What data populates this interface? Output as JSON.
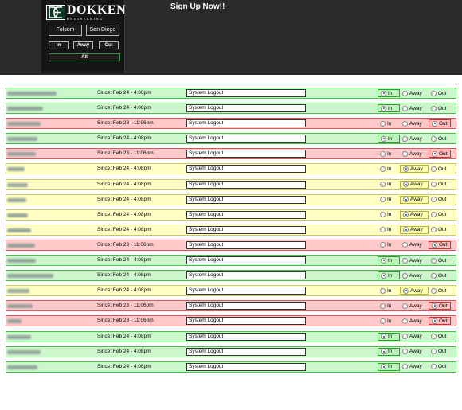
{
  "header": {
    "logo_name": "DOKKEN",
    "logo_sub": "ENGINEERING",
    "signup": "Sign Up Now!!",
    "locations": [
      "Folsom",
      "San Diego"
    ],
    "status_buttons": [
      "In",
      "Away",
      "Out"
    ],
    "all_label": "All"
  },
  "option_labels": {
    "in": "In",
    "away": "Away",
    "out": "Out"
  },
  "rows": [
    {
      "since": "Since: Feb 24 - 4:08pm",
      "message": "System Logout",
      "status": "in",
      "selected": "in"
    },
    {
      "since": "Since: Feb 24 - 4:08pm",
      "message": "System Logout",
      "status": "in",
      "selected": "in"
    },
    {
      "since": "Since: Feb 23 - 11:06pm",
      "message": "System Logout",
      "status": "out",
      "selected": "out"
    },
    {
      "since": "Since: Feb 24 - 4:08pm",
      "message": "System Logout",
      "status": "in",
      "selected": "in"
    },
    {
      "since": "Since: Feb 23 - 11:06pm",
      "message": "System Logout",
      "status": "out",
      "selected": "out"
    },
    {
      "since": "Since: Feb 24 - 4:08pm",
      "message": "System Logout",
      "status": "away",
      "selected": "away"
    },
    {
      "since": "Since: Feb 24 - 4:08pm",
      "message": "System Logout",
      "status": "away",
      "selected": "away"
    },
    {
      "since": "Since: Feb 24 - 4:08pm",
      "message": "System Logout",
      "status": "away",
      "selected": "away"
    },
    {
      "since": "Since: Feb 24 - 4:08pm",
      "message": "System Logout",
      "status": "away",
      "selected": "away"
    },
    {
      "since": "Since: Feb 24 - 4:08pm",
      "message": "System Logout",
      "status": "away",
      "selected": "away"
    },
    {
      "since": "Since: Feb 23 - 11:06pm",
      "message": "System Logout",
      "status": "out",
      "selected": "out"
    },
    {
      "since": "Since: Feb 24 - 4:08pm",
      "message": "System Logout",
      "status": "in",
      "selected": "in"
    },
    {
      "since": "Since: Feb 24 - 4:08pm",
      "message": "System Logout",
      "status": "in",
      "selected": "in"
    },
    {
      "since": "Since: Feb 24 - 4:08pm",
      "message": "System Logout",
      "status": "away",
      "selected": "away"
    },
    {
      "since": "Since: Feb 23 - 11:06pm",
      "message": "System Logout",
      "status": "out",
      "selected": "out"
    },
    {
      "since": "Since: Feb 23 - 11:06pm",
      "message": "System Logout",
      "status": "out",
      "selected": "out"
    },
    {
      "since": "Since: Feb 24 - 4:08pm",
      "message": "System Logout",
      "status": "in",
      "selected": "in"
    },
    {
      "since": "Since: Feb 24 - 4:08pm",
      "message": "System Logout",
      "status": "in",
      "selected": "in"
    },
    {
      "since": "Since: Feb 24 - 4:08pm",
      "message": "System Logout",
      "status": "in",
      "selected": "in"
    }
  ]
}
